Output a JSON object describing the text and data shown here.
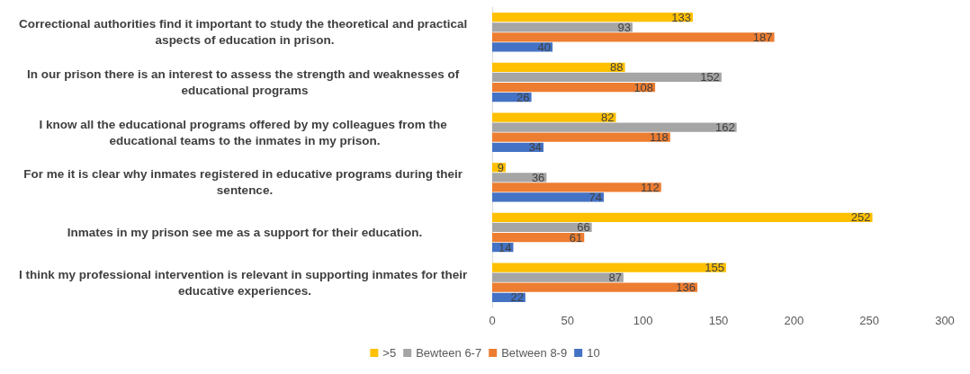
{
  "chart_data": {
    "type": "bar",
    "orientation": "horizontal",
    "categories": [
      "Correctional authorities find it important to study the theoretical and practical aspects of education in prison.",
      "In our prison there is an interest to assess the strength and weaknesses of educational programs",
      "I know all the educational programs offered by my colleagues from the educational teams to the inmates in my prison.",
      "For me it is clear why inmates registered in educative programs during their sentence.",
      "Inmates in my prison see me as a support for their education.",
      "I think my professional intervention is relevant in supporting inmates for their educative experiences."
    ],
    "series": [
      {
        "name": ">5",
        "color": "#ffc000",
        "values": [
          133,
          88,
          82,
          9,
          252,
          155
        ]
      },
      {
        "name": "Bewteen 6-7",
        "color": "#a5a5a5",
        "values": [
          93,
          152,
          162,
          36,
          66,
          87
        ]
      },
      {
        "name": "Between 8-9",
        "color": "#ed7d31",
        "values": [
          187,
          108,
          118,
          112,
          61,
          136
        ]
      },
      {
        "name": "10",
        "color": "#4472c4",
        "values": [
          40,
          26,
          34,
          74,
          14,
          22
        ]
      }
    ],
    "xlim": [
      0,
      300
    ],
    "xticks": [
      0,
      50,
      100,
      150,
      200,
      250,
      300
    ],
    "data_labels": true,
    "legend": "bottom",
    "grid": false
  }
}
